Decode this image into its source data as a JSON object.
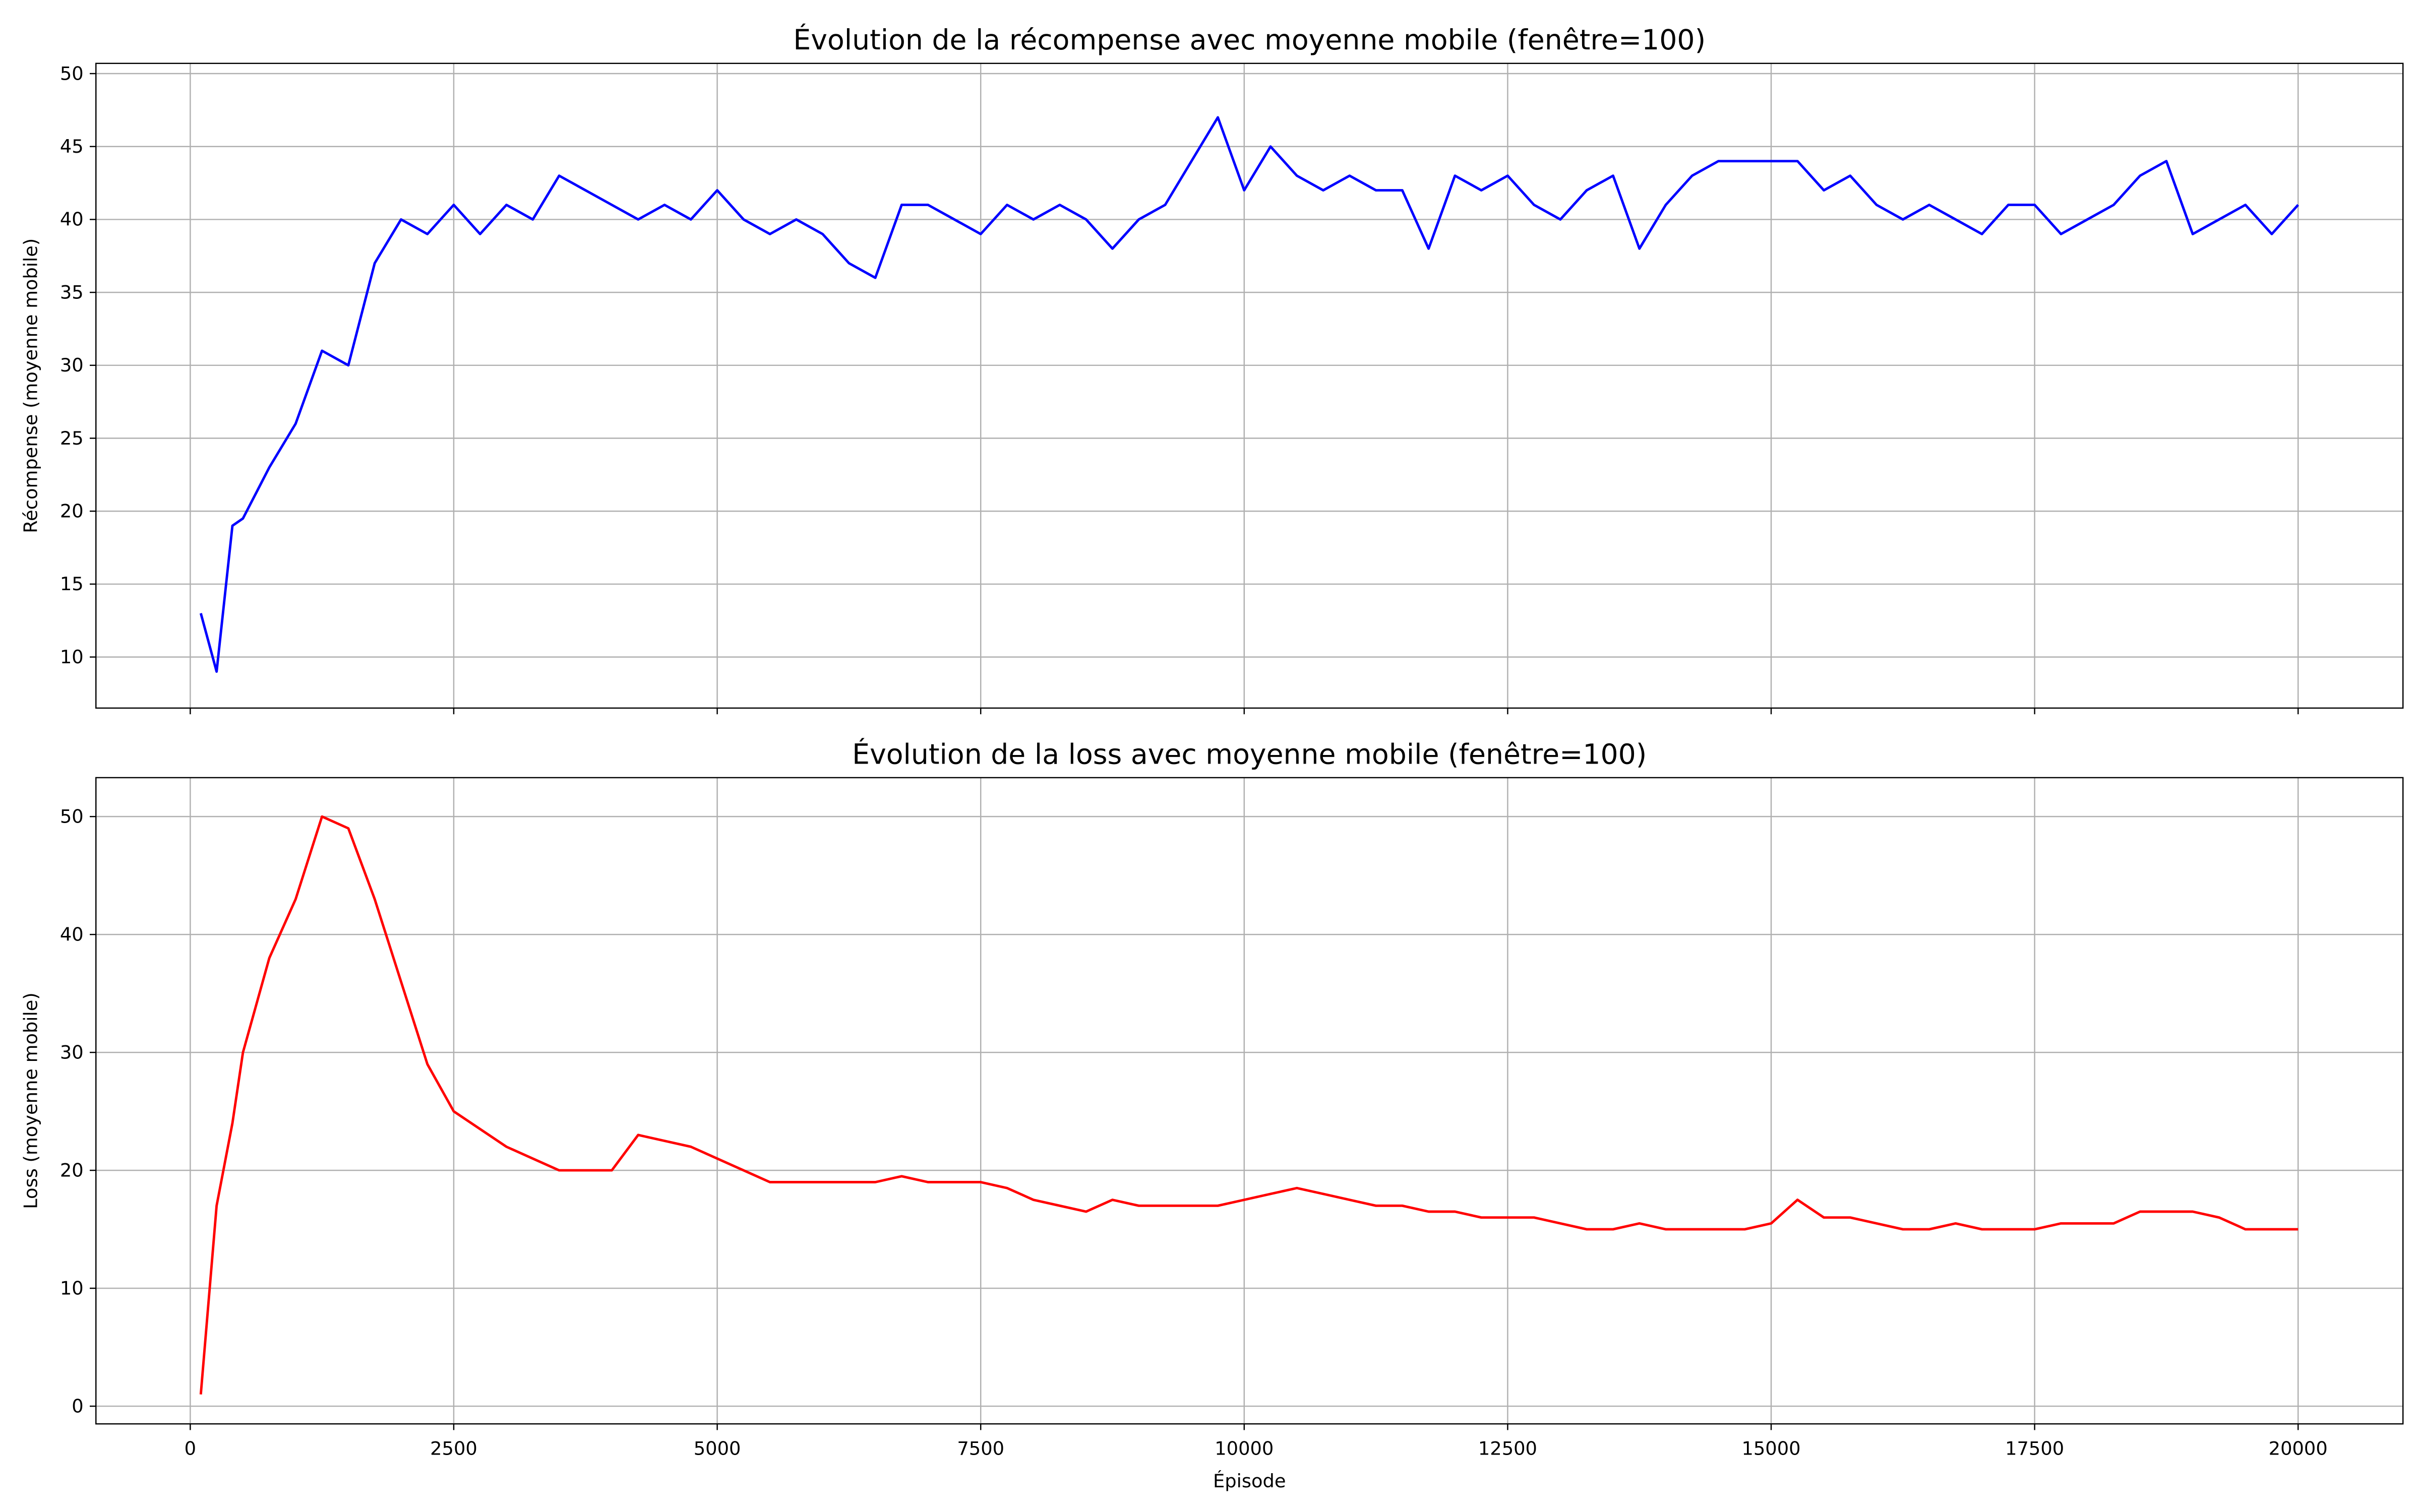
{
  "chart_data": [
    {
      "type": "line",
      "title": "Évolution de la récompense avec moyenne mobile (fenêtre=100)",
      "ylabel": "Récompense (moyenne mobile)",
      "x": [
        100,
        250,
        400,
        500,
        750,
        1000,
        1250,
        1500,
        1750,
        2000,
        2250,
        2500,
        2750,
        3000,
        3250,
        3500,
        3750,
        4000,
        4250,
        4500,
        4750,
        5000,
        5250,
        5500,
        5750,
        6000,
        6250,
        6500,
        6750,
        7000,
        7250,
        7500,
        7750,
        8000,
        8250,
        8500,
        8750,
        9000,
        9250,
        9500,
        9750,
        10000,
        10250,
        10500,
        10750,
        11000,
        11250,
        11500,
        11750,
        12000,
        12250,
        12500,
        12750,
        13000,
        13250,
        13500,
        13750,
        14000,
        14250,
        14500,
        14750,
        15000,
        15250,
        15500,
        15750,
        16000,
        16250,
        16500,
        16750,
        17000,
        17250,
        17500,
        17750,
        18000,
        18250,
        18500,
        18750,
        19000,
        19250,
        19500,
        19750,
        20000
      ],
      "series": [
        {
          "name": "Récompense",
          "color": "#0000ff",
          "values": [
            13,
            9,
            19,
            19.5,
            23,
            26,
            31,
            30,
            37,
            40,
            39,
            41,
            39,
            41,
            40,
            43,
            42,
            41,
            40,
            41,
            40,
            42,
            40,
            39,
            40,
            39,
            37,
            36,
            41,
            41,
            40,
            39,
            41,
            40,
            41,
            40,
            38,
            40,
            41,
            44,
            47,
            42,
            45,
            43,
            42,
            43,
            42,
            42,
            38,
            43,
            42,
            43,
            41,
            40,
            42,
            43,
            38,
            41,
            43,
            44,
            44,
            44,
            44,
            42,
            43,
            41,
            40,
            41,
            40,
            39,
            41,
            41,
            39,
            40,
            41,
            43,
            44,
            39,
            40,
            41,
            39,
            41
          ]
        }
      ],
      "xlim": [
        -895,
        20995
      ],
      "xticks": [
        0,
        2500,
        5000,
        7500,
        10000,
        12500,
        15000,
        17500,
        20000
      ],
      "ylim": [
        6.5,
        50.7
      ],
      "yticks": [
        10,
        15,
        20,
        25,
        30,
        35,
        40,
        45,
        50
      ],
      "grid": true
    },
    {
      "type": "line",
      "title": "Évolution de la loss avec moyenne mobile (fenêtre=100)",
      "ylabel": "Loss (moyenne mobile)",
      "xlabel": "Épisode",
      "x": [
        100,
        250,
        400,
        500,
        750,
        1000,
        1250,
        1500,
        1750,
        2000,
        2250,
        2500,
        2750,
        3000,
        3250,
        3500,
        3750,
        4000,
        4250,
        4500,
        4750,
        5000,
        5250,
        5500,
        5750,
        6000,
        6250,
        6500,
        6750,
        7000,
        7250,
        7500,
        7750,
        8000,
        8250,
        8500,
        8750,
        9000,
        9250,
        9500,
        9750,
        10000,
        10250,
        10500,
        10750,
        11000,
        11250,
        11500,
        11750,
        12000,
        12250,
        12500,
        12750,
        13000,
        13250,
        13500,
        13750,
        14000,
        14250,
        14500,
        14750,
        15000,
        15250,
        15500,
        15750,
        16000,
        16250,
        16500,
        16750,
        17000,
        17250,
        17500,
        17750,
        18000,
        18250,
        18500,
        18750,
        19000,
        19250,
        19500,
        19750,
        20000
      ],
      "series": [
        {
          "name": "Loss",
          "color": "#ff0000",
          "values": [
            1,
            17,
            24,
            30,
            38,
            43,
            50,
            49,
            43,
            36,
            29,
            25,
            23.5,
            22,
            21,
            20,
            20,
            20,
            23,
            22.5,
            22,
            21,
            20,
            19,
            19,
            19,
            19,
            19,
            19.5,
            19,
            19,
            19,
            18.5,
            17.5,
            17,
            16.5,
            17.5,
            17,
            17,
            17,
            17,
            17.5,
            18,
            18.5,
            18,
            17.5,
            17,
            17,
            16.5,
            16.5,
            16,
            16,
            16,
            15.5,
            15,
            15,
            15.5,
            15,
            15,
            15,
            15,
            15.5,
            17.5,
            16,
            16,
            15.5,
            15,
            15,
            15.5,
            15,
            15,
            15,
            15.5,
            15.5,
            15.5,
            16.5,
            16.5,
            16.5,
            16,
            15,
            15,
            15
          ]
        }
      ],
      "xlim": [
        -895,
        20995
      ],
      "xticks": [
        0,
        2500,
        5000,
        7500,
        10000,
        12500,
        15000,
        17500,
        20000
      ],
      "ylim": [
        -1.5,
        53.3
      ],
      "yticks": [
        0,
        10,
        20,
        30,
        40,
        50
      ],
      "grid": true
    }
  ]
}
